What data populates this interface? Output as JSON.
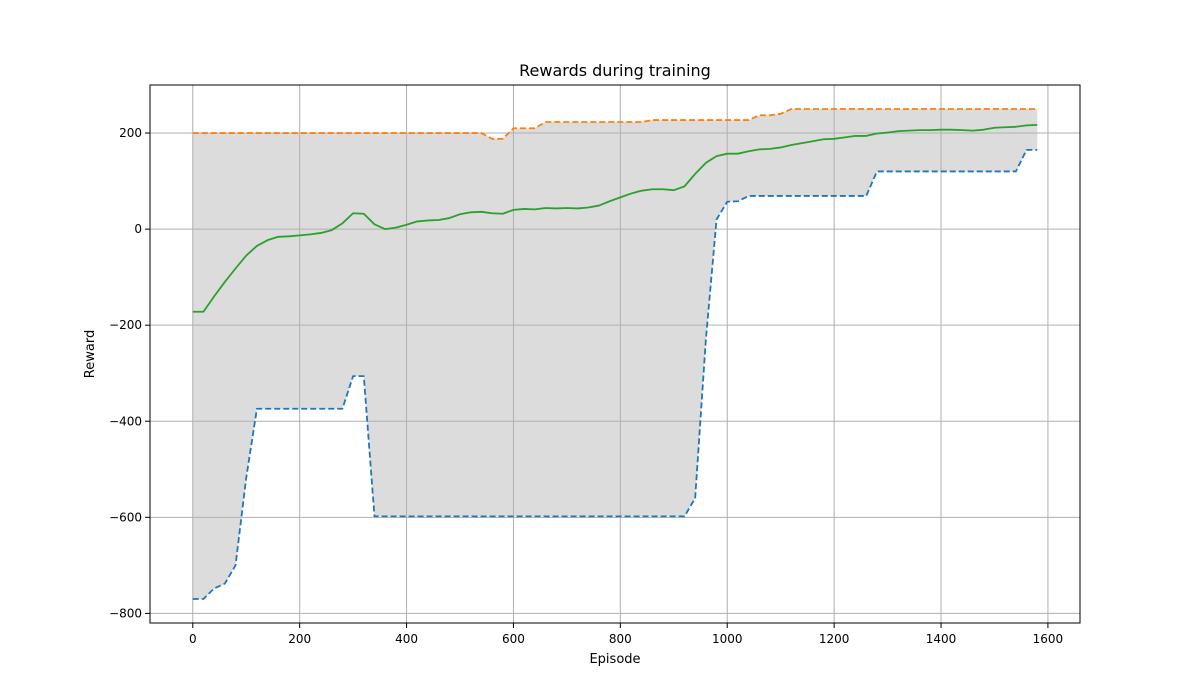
{
  "chart_data": {
    "type": "line",
    "title": "Rewards during training",
    "xlabel": "Episode",
    "ylabel": "Reward",
    "xlim": [
      -80,
      1660
    ],
    "ylim": [
      -820,
      300
    ],
    "xticks": [
      0,
      200,
      400,
      600,
      800,
      1000,
      1200,
      1400,
      1600
    ],
    "xtick_labels": [
      "0",
      "200",
      "400",
      "600",
      "800",
      "1000",
      "1200",
      "1400",
      "1600"
    ],
    "yticks": [
      -800,
      -600,
      -400,
      -200,
      0,
      200
    ],
    "ytick_labels": [
      "−800",
      "−600",
      "−400",
      "−200",
      "0",
      "200"
    ],
    "grid": true,
    "legend": "none",
    "fill_between": {
      "color": "#dcdcdc",
      "lower_series": 0,
      "upper_series": 1
    },
    "series": [
      {
        "color": "#1f77b4",
        "style": "dashed",
        "x": [
          0,
          20,
          40,
          60,
          80,
          100,
          120,
          140,
          160,
          180,
          200,
          220,
          240,
          260,
          280,
          300,
          320,
          340,
          360,
          900,
          920,
          940,
          960,
          980,
          1000,
          1020,
          1040,
          1260,
          1280,
          1540,
          1560,
          1580
        ],
        "y": [
          -770,
          -770,
          -748,
          -738,
          -700,
          -518,
          -374,
          -374,
          -374,
          -374,
          -374,
          -374,
          -374,
          -374,
          -374,
          -306,
          -306,
          -598,
          -598,
          -598,
          -598,
          -560,
          -230,
          20,
          57,
          58,
          69,
          69,
          120,
          120,
          165,
          165
        ]
      },
      {
        "color": "#ff7f0e",
        "style": "dashed",
        "x": [
          0,
          520,
          540,
          560,
          580,
          600,
          620,
          640,
          660,
          840,
          860,
          1040,
          1060,
          1080,
          1100,
          1120,
          1580
        ],
        "y": [
          200,
          200,
          200,
          188,
          188,
          210,
          210,
          210,
          223,
          223,
          227,
          227,
          237,
          237,
          240,
          250,
          250
        ]
      },
      {
        "color": "#2ca02c",
        "style": "solid",
        "x": [
          0,
          20,
          40,
          60,
          80,
          100,
          120,
          140,
          160,
          180,
          200,
          220,
          240,
          260,
          280,
          300,
          320,
          340,
          360,
          380,
          400,
          420,
          440,
          460,
          480,
          500,
          520,
          540,
          560,
          580,
          600,
          620,
          640,
          660,
          680,
          700,
          720,
          740,
          760,
          780,
          800,
          820,
          840,
          860,
          880,
          900,
          920,
          940,
          960,
          980,
          1000,
          1020,
          1040,
          1060,
          1080,
          1100,
          1120,
          1140,
          1160,
          1180,
          1200,
          1220,
          1240,
          1260,
          1280,
          1300,
          1320,
          1340,
          1360,
          1380,
          1400,
          1420,
          1440,
          1460,
          1480,
          1500,
          1520,
          1540,
          1560,
          1580
        ],
        "y": [
          -172,
          -172,
          -140,
          -110,
          -82,
          -55,
          -35,
          -23,
          -16,
          -15,
          -13,
          -11,
          -8,
          -2,
          12,
          33,
          32,
          10,
          0,
          3,
          9,
          16,
          18,
          19,
          23,
          31,
          35,
          36,
          33,
          32,
          40,
          42,
          41,
          44,
          43,
          44,
          43,
          45,
          49,
          58,
          66,
          74,
          80,
          83,
          83,
          81,
          89,
          115,
          138,
          152,
          157,
          157,
          162,
          166,
          167,
          170,
          175,
          179,
          183,
          187,
          188,
          191,
          194,
          194,
          199,
          201,
          204,
          205,
          206,
          206,
          207,
          207,
          206,
          205,
          207,
          211,
          212,
          213,
          216,
          217
        ]
      }
    ]
  }
}
